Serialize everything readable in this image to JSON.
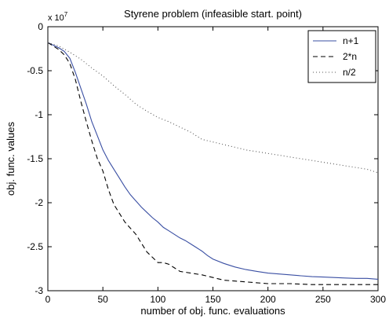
{
  "chart_data": {
    "type": "line",
    "title": "Styrene problem (infeasible start. point)",
    "xlabel": "number of obj. func. evaluations",
    "ylabel": "obj. func. values",
    "y_exponent_label": "x 10",
    "y_exponent_power": "7",
    "xlim": [
      0,
      300
    ],
    "ylim": [
      -3,
      0
    ],
    "x_ticks": [
      0,
      50,
      100,
      150,
      200,
      250,
      300
    ],
    "x_tick_labels": [
      "0",
      "50",
      "100",
      "150",
      "200",
      "250",
      "300"
    ],
    "y_ticks": [
      0,
      -0.5,
      -1,
      -1.5,
      -2,
      -2.5,
      -3
    ],
    "y_tick_labels": [
      "0",
      "-0.5",
      "-1",
      "-1.5",
      "-2",
      "-2.5",
      "-3"
    ],
    "grid": false,
    "legend_position": "top-right",
    "series": [
      {
        "name": "n+1",
        "style": "solid",
        "color": "#3a4fa3",
        "x": [
          0,
          10,
          15,
          20,
          25,
          30,
          35,
          40,
          45,
          50,
          55,
          60,
          65,
          70,
          75,
          80,
          85,
          90,
          95,
          100,
          105,
          110,
          115,
          120,
          125,
          130,
          135,
          140,
          145,
          150,
          160,
          170,
          180,
          190,
          200,
          210,
          220,
          230,
          240,
          250,
          260,
          270,
          280,
          290,
          300
        ],
        "y": [
          -0.18,
          -0.24,
          -0.28,
          -0.36,
          -0.52,
          -0.7,
          -0.88,
          -1.08,
          -1.24,
          -1.4,
          -1.52,
          -1.62,
          -1.72,
          -1.82,
          -1.91,
          -1.98,
          -2.05,
          -2.11,
          -2.17,
          -2.22,
          -2.28,
          -2.32,
          -2.36,
          -2.4,
          -2.43,
          -2.47,
          -2.51,
          -2.55,
          -2.6,
          -2.64,
          -2.69,
          -2.73,
          -2.76,
          -2.78,
          -2.8,
          -2.81,
          -2.82,
          -2.83,
          -2.84,
          -2.845,
          -2.85,
          -2.855,
          -2.86,
          -2.86,
          -2.87
        ]
      },
      {
        "name": "2*n",
        "style": "dashed",
        "color": "#000000",
        "x": [
          0,
          10,
          15,
          20,
          25,
          30,
          35,
          40,
          45,
          50,
          55,
          60,
          65,
          70,
          75,
          80,
          85,
          90,
          95,
          100,
          105,
          110,
          115,
          120,
          130,
          140,
          150,
          160,
          170,
          180,
          190,
          200,
          220,
          240,
          260,
          280,
          300
        ],
        "y": [
          -0.18,
          -0.26,
          -0.32,
          -0.42,
          -0.6,
          -0.85,
          -1.08,
          -1.3,
          -1.5,
          -1.64,
          -1.85,
          -2.02,
          -2.12,
          -2.22,
          -2.29,
          -2.36,
          -2.46,
          -2.56,
          -2.62,
          -2.68,
          -2.68,
          -2.7,
          -2.74,
          -2.78,
          -2.8,
          -2.82,
          -2.85,
          -2.88,
          -2.89,
          -2.9,
          -2.91,
          -2.92,
          -2.92,
          -2.93,
          -2.93,
          -2.93,
          -2.93
        ]
      },
      {
        "name": "n/2",
        "style": "dotted",
        "color": "#555555",
        "x": [
          0,
          10,
          20,
          30,
          40,
          50,
          60,
          70,
          80,
          90,
          100,
          110,
          120,
          130,
          140,
          150,
          160,
          170,
          180,
          190,
          200,
          210,
          220,
          230,
          240,
          250,
          260,
          270,
          280,
          290,
          300
        ],
        "y": [
          -0.18,
          -0.22,
          -0.29,
          -0.37,
          -0.47,
          -0.56,
          -0.67,
          -0.77,
          -0.88,
          -0.96,
          -1.03,
          -1.08,
          -1.14,
          -1.2,
          -1.28,
          -1.31,
          -1.34,
          -1.37,
          -1.4,
          -1.42,
          -1.44,
          -1.46,
          -1.48,
          -1.5,
          -1.52,
          -1.54,
          -1.56,
          -1.58,
          -1.6,
          -1.62,
          -1.66
        ]
      }
    ]
  }
}
